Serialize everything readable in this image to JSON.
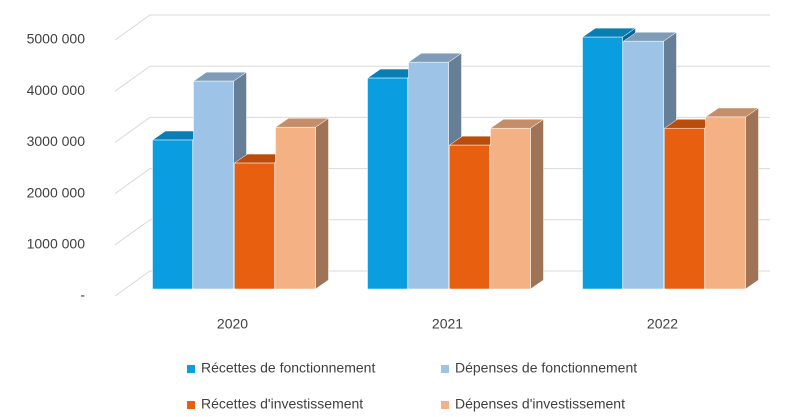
{
  "chart_data": {
    "type": "bar3d",
    "categories": [
      "2020",
      "2021",
      "2022"
    ],
    "series": [
      {
        "name": "Récettes de fonctionnement",
        "color": "#0a9ee0",
        "values": [
          2910000,
          4120000,
          4920000
        ]
      },
      {
        "name": "Dépenses de fonctionnement",
        "color": "#9dc3e6",
        "values": [
          4060000,
          4430000,
          4840000
        ]
      },
      {
        "name": "Récettes d'investissement",
        "color": "#e8600f",
        "values": [
          2460000,
          2810000,
          3140000
        ]
      },
      {
        "name": "Dépenses d'investissement",
        "color": "#f4b183",
        "values": [
          3160000,
          3140000,
          3360000
        ]
      }
    ],
    "ylim": [
      0,
      5000000
    ],
    "yticks": [
      {
        "value": 0,
        "label": "-"
      },
      {
        "value": 1000000,
        "label": "1000 000"
      },
      {
        "value": 2000000,
        "label": "2000 000"
      },
      {
        "value": 3000000,
        "label": "3000 000"
      },
      {
        "value": 4000000,
        "label": "4000 000"
      },
      {
        "value": 5000000,
        "label": "5000 000"
      }
    ],
    "grid": true
  }
}
